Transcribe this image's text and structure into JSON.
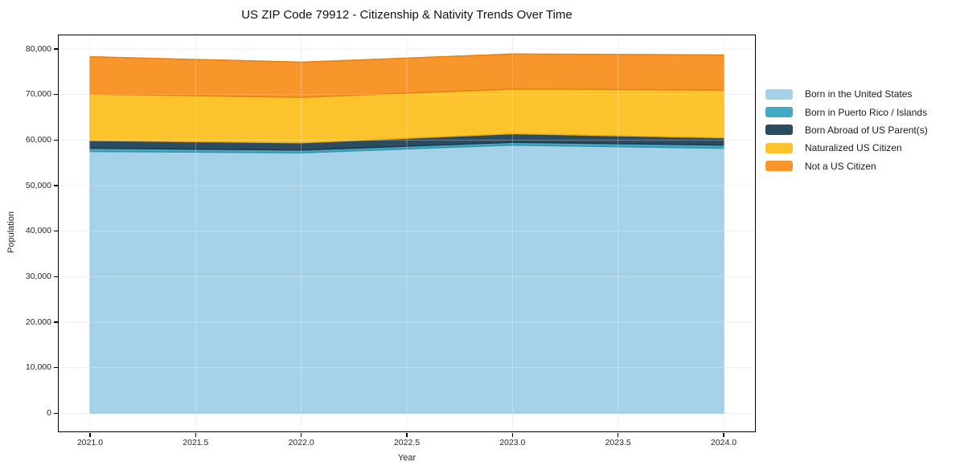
{
  "title": "US ZIP Code 79912 - Citizenship & Nativity Trends Over Time",
  "chart_data": {
    "type": "area",
    "stacked": true,
    "title": "US ZIP Code 79912 - Citizenship & Nativity Trends Over Time",
    "xlabel": "Year",
    "ylabel": "Population",
    "x": [
      2021,
      2022,
      2023,
      2024
    ],
    "series": [
      {
        "name": "Born in the United States",
        "values": [
          57500,
          57200,
          58900,
          58200
        ],
        "color": "#A5D2E8",
        "edge": "#8BC3DC"
      },
      {
        "name": "Born in Puerto Rico / Islands",
        "values": [
          700,
          600,
          600,
          700
        ],
        "color": "#43AAC4",
        "edge": "#3592AA"
      },
      {
        "name": "Born Abroad of US Parent(s)",
        "values": [
          1700,
          1600,
          1900,
          1600
        ],
        "color": "#2B4B60",
        "edge": "#1E3848"
      },
      {
        "name": "Naturalized US Citizen",
        "values": [
          10200,
          10000,
          9800,
          10500
        ],
        "color": "#FCC32D",
        "edge": "#E9AE12"
      },
      {
        "name": "Not a US Citizen",
        "values": [
          8200,
          7700,
          7700,
          7700
        ],
        "color": "#F8952B",
        "edge": "#E2820F"
      }
    ],
    "totals": [
      78300,
      77100,
      78900,
      78700
    ],
    "xlim": [
      2020.8515,
      2024.1485
    ],
    "ylim": [
      -4000,
      83000
    ],
    "x_ticks": [
      2021.0,
      2021.5,
      2022.0,
      2022.5,
      2023.0,
      2023.5,
      2024.0
    ],
    "x_tick_labels": [
      "2021.0",
      "2021.5",
      "2022.0",
      "2022.5",
      "2023.0",
      "2023.5",
      "2024.0"
    ],
    "y_ticks": [
      0,
      10000,
      20000,
      30000,
      40000,
      50000,
      60000,
      70000,
      80000
    ],
    "y_tick_labels": [
      "0",
      "10,000",
      "20,000",
      "30,000",
      "40,000",
      "50,000",
      "60,000",
      "70,000",
      "80,000"
    ],
    "grid": true,
    "grid_color": "#ebebeb",
    "legend_position": "right of plot"
  }
}
